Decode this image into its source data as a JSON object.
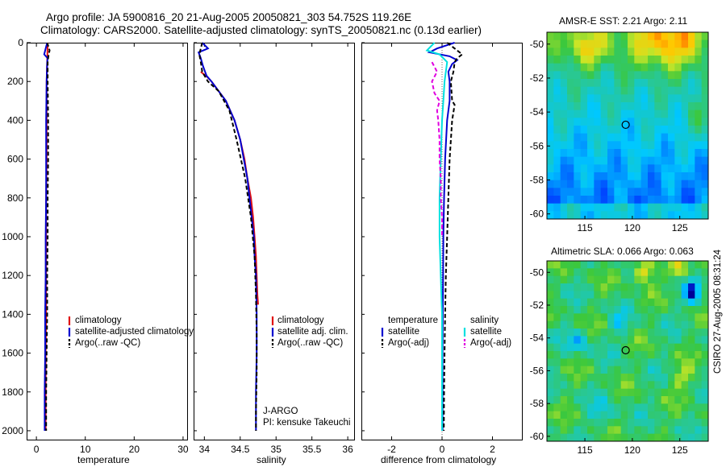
{
  "header": {
    "line1": "Argo profile: JA 5900816_20 21-Aug-2005 20050821_303 54.752S 119.26E",
    "line2": "Climatology: CARS2000. Satellite-adjusted climatology: synTS_20050821.nc (0.13d earlier)"
  },
  "depth_axis": {
    "ticks": [
      "0",
      "200",
      "400",
      "600",
      "800",
      "1000",
      "1200",
      "1400",
      "1600",
      "1800",
      "2000"
    ]
  },
  "colors": {
    "climatology": "#e01010",
    "satellite": "#0000d0",
    "argo": "#000000",
    "sal_satellite": "#00e0e0",
    "sal_argo": "#e000e0"
  },
  "chart_data": [
    {
      "type": "line",
      "title": "",
      "xlabel": "temperature",
      "ylabel": "depth",
      "xlim": [
        -2,
        31
      ],
      "ylim": [
        2050,
        0
      ],
      "xticks": [
        "0",
        "10",
        "20",
        "30"
      ],
      "legend_placement": "center-right",
      "legend": [
        "climatology",
        "satellite-adjusted climatology",
        "Argo(..raw -QC)"
      ],
      "series": [
        {
          "name": "climatology",
          "depth": [
            0,
            100,
            200,
            400,
            600,
            800,
            1000,
            1200,
            1400,
            1600,
            1800,
            2000
          ],
          "values": [
            2.3,
            2.2,
            2.1,
            2.1,
            2.1,
            2.0,
            2.0,
            2.0,
            2.0,
            1.9,
            1.9,
            1.9
          ]
        },
        {
          "name": "satellite-adjusted climatology",
          "depth": [
            0,
            30,
            60,
            80,
            100,
            200,
            400,
            600,
            800,
            1000,
            1200,
            1400,
            1600,
            1800,
            2000
          ],
          "values": [
            2.2,
            1.9,
            1.6,
            2.3,
            2.2,
            2.1,
            2.0,
            2.0,
            2.0,
            1.9,
            1.9,
            1.8,
            1.8,
            1.7,
            1.7
          ]
        },
        {
          "name": "Argo(..raw -QC)",
          "depth": [
            0,
            40,
            60,
            100,
            200,
            400,
            600,
            800,
            1000,
            1200,
            1400,
            1600,
            1800,
            2000
          ],
          "values": [
            2.2,
            2.7,
            2.5,
            2.3,
            2.3,
            2.4,
            2.4,
            2.3,
            2.3,
            2.2,
            2.2,
            2.1,
            2.0,
            2.0
          ]
        }
      ]
    },
    {
      "type": "line",
      "xlabel": "salinity",
      "ylabel": "depth",
      "xlim": [
        33.85,
        36.1
      ],
      "ylim": [
        2050,
        0
      ],
      "xticks": [
        "34",
        "34.5",
        "35",
        "35.5",
        "36"
      ],
      "legend_placement": "center-right",
      "legend": [
        "climatology",
        "satellite adj. clim.",
        "Argo(..raw -QC)"
      ],
      "annotation": [
        "J-ARGO",
        "PI: kensuke Takeuchi"
      ],
      "series": [
        {
          "name": "climatology",
          "depth": [
            150,
            180,
            200,
            300,
            400,
            500,
            600,
            700,
            800,
            900,
            1000,
            1100,
            1200,
            1300,
            1350
          ],
          "values": [
            33.95,
            34.05,
            34.1,
            34.3,
            34.42,
            34.5,
            34.56,
            34.6,
            34.65,
            34.68,
            34.7,
            34.72,
            34.73,
            34.74,
            34.75
          ]
        },
        {
          "name": "satellite adj. clim.",
          "depth": [
            0,
            30,
            50,
            80,
            120,
            170,
            200,
            300,
            400,
            500,
            600,
            700,
            800,
            900,
            1000,
            1100,
            1200,
            1400,
            1600,
            1800,
            2000
          ],
          "values": [
            33.97,
            34.05,
            33.92,
            33.95,
            33.98,
            34.03,
            34.1,
            34.3,
            34.42,
            34.5,
            34.55,
            34.6,
            34.63,
            34.66,
            34.69,
            34.7,
            34.72,
            34.73,
            34.73,
            34.72,
            34.72
          ]
        },
        {
          "name": "Argo(..raw -QC)",
          "depth": [
            0,
            60,
            100,
            150,
            200,
            250,
            350,
            500,
            700,
            900,
            1100,
            1300,
            1500,
            1700,
            1900,
            2000
          ],
          "values": [
            33.97,
            33.93,
            33.95,
            33.97,
            34.05,
            34.2,
            34.35,
            34.45,
            34.57,
            34.65,
            34.7,
            34.72,
            34.73,
            34.73,
            34.72,
            34.72
          ]
        }
      ]
    },
    {
      "type": "line",
      "xlabel": "difference from climatology",
      "ylabel": "depth",
      "xlim": [
        -3.2,
        3.2
      ],
      "ylim": [
        2050,
        0
      ],
      "xticks": [
        "-2",
        "0",
        "2"
      ],
      "legend_placement": "center",
      "legend_groups": [
        {
          "heading": "temperature",
          "items": [
            "satellite",
            "Argo(-adj)"
          ]
        },
        {
          "heading": "salinity",
          "items": [
            "satellite",
            "Argo(-adj)"
          ]
        }
      ],
      "series": [
        {
          "name": "temperature satellite",
          "depth": [
            0,
            30,
            50,
            70,
            90,
            110,
            150,
            200,
            300,
            400,
            600,
            800,
            1000,
            1200,
            1400,
            1600,
            1800,
            2000
          ],
          "values": [
            0.5,
            -0.2,
            -0.5,
            0.3,
            0.6,
            0.4,
            0.25,
            0.3,
            0.3,
            0.2,
            0.12,
            0.08,
            0.05,
            0.04,
            0.03,
            0.02,
            0.02,
            0.02
          ]
        },
        {
          "name": "temperature Argo(-adj)",
          "depth": [
            0,
            30,
            60,
            80,
            100,
            150,
            200,
            300,
            320,
            400,
            600,
            800,
            1000,
            1200,
            1400,
            1600,
            1800,
            2000
          ],
          "values": [
            0.2,
            0.5,
            0.8,
            0.6,
            0.5,
            0.45,
            0.35,
            0.4,
            0.5,
            0.4,
            0.3,
            0.25,
            0.2,
            0.15,
            0.12,
            0.1,
            0.08,
            0.07
          ]
        },
        {
          "name": "salinity satellite",
          "depth": [
            0,
            40,
            60,
            100,
            200,
            300,
            400,
            600,
            800,
            1000,
            1200,
            1400,
            1600,
            1800,
            2000
          ],
          "values": [
            -0.3,
            -0.6,
            -0.1,
            0.2,
            0.1,
            0.05,
            0.0,
            -0.05,
            -0.1,
            -0.1,
            -0.05,
            0.0,
            0.0,
            0.0,
            0.0
          ]
        },
        {
          "name": "salinity Argo(-adj)",
          "depth": [
            100,
            150,
            200,
            260,
            300,
            350,
            400,
            500,
            600,
            700,
            800,
            900,
            1000
          ],
          "values": [
            -0.4,
            -0.2,
            -0.4,
            -0.3,
            -0.1,
            -0.2,
            -0.15,
            -0.1,
            -0.1,
            -0.05,
            -0.05,
            0.0,
            0.0
          ]
        }
      ]
    },
    {
      "type": "heatmap",
      "title": "AMSR-E SST: 2.21 Argo: 2.11",
      "xlim": [
        111,
        128
      ],
      "ylim": [
        -60.3,
        -49.3
      ],
      "xticks": [
        "115",
        "120",
        "125"
      ],
      "yticks": [
        "-50",
        "-52",
        "-54",
        "-56",
        "-58",
        "-60"
      ],
      "marker": {
        "x": 119.3,
        "y": -54.75
      }
    },
    {
      "type": "heatmap",
      "title": "Altimetric SLA: 0.066 Argo: 0.063",
      "xlim": [
        111,
        128
      ],
      "ylim": [
        -60.3,
        -49.3
      ],
      "xticks": [
        "115",
        "120",
        "125"
      ],
      "yticks": [
        "-50",
        "-52",
        "-54",
        "-56",
        "-58",
        "-60"
      ],
      "marker": {
        "x": 119.3,
        "y": -54.75
      }
    }
  ],
  "side_label": "CSIRO 27-Aug-2005 08:31:24"
}
